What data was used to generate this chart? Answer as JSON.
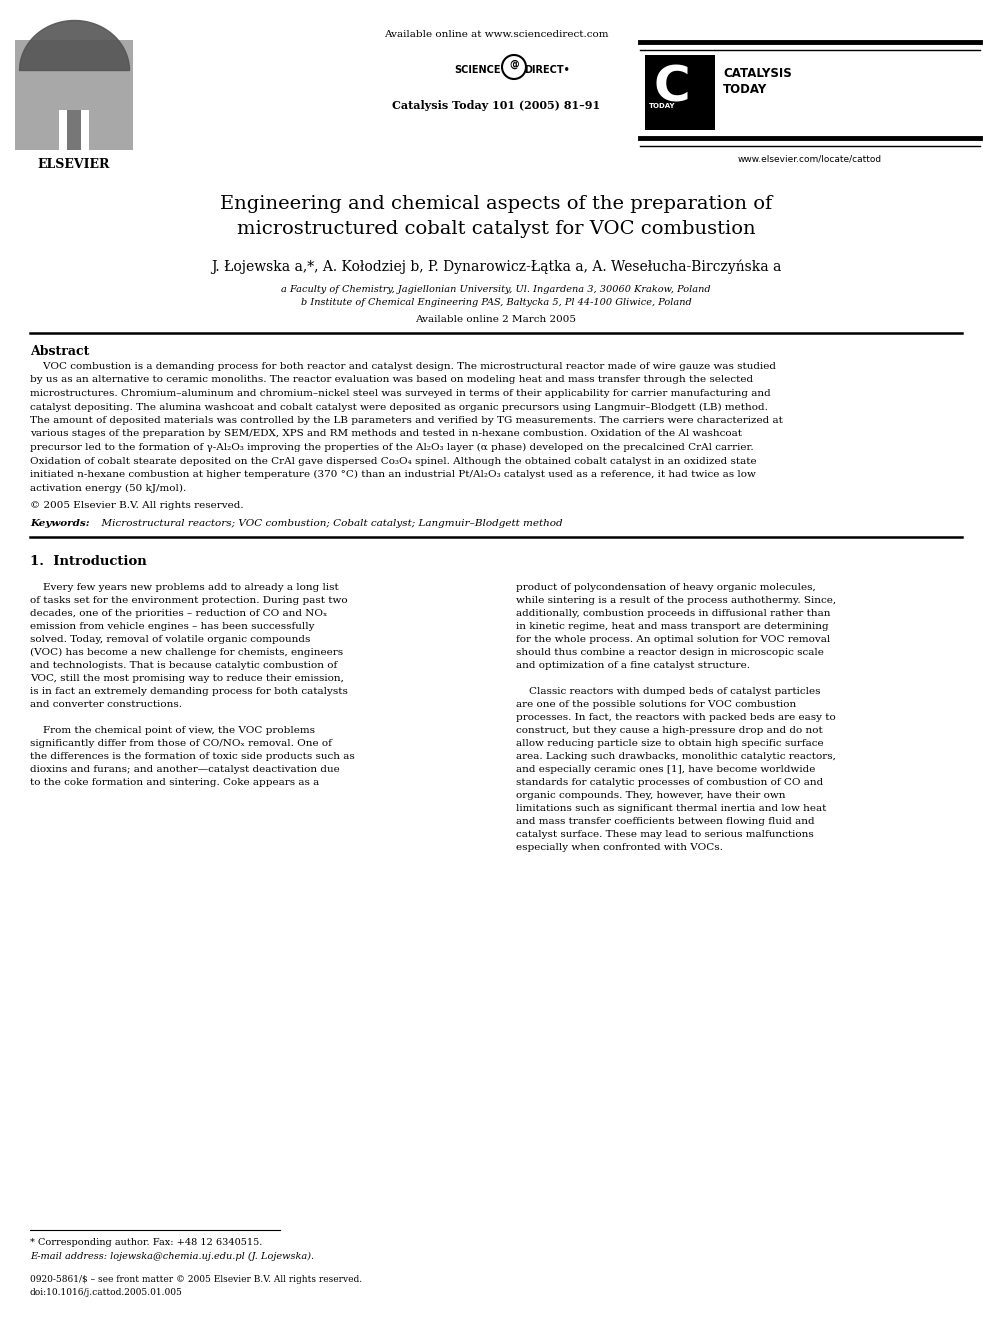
{
  "bg_color": "#ffffff",
  "page_width": 9.92,
  "page_height": 13.23,
  "dpi": 100,
  "header_available_online": "Available online at www.sciencedirect.com",
  "header_journal_line": "Catalysis Today 101 (2005) 81–91",
  "header_website": "www.elsevier.com/locate/cattod",
  "catalysis_text1": "CATALYSIS",
  "catalysis_text2": "TODAY",
  "title_line1": "Engineering and chemical aspects of the preparation of",
  "title_line2": "microstructured cobalt catalyst for VOC combustion",
  "authors_line": "J. Łojewska a,*, A. Kołodziej b, P. Dynarowicz-Łątka a, A. Wesełucha-Birczyńska a",
  "affil_a": "a Faculty of Chemistry, Jagiellonian University, Ul. Ingardena 3, 30060 Krakow, Poland",
  "affil_b": "b Institute of Chemical Engineering PAS, Bałtycka 5, Pl 44-100 Gliwice, Poland",
  "available_online_date": "Available online 2 March 2005",
  "abstract_label": "Abstract",
  "copyright": "© 2005 Elsevier B.V. All rights reserved.",
  "keywords_label": "Keywords:",
  "keywords_text": "Microstructural reactors; VOC combustion; Cobalt catalyst; Langmuir–Blodgett method",
  "section1_label": "1.  Introduction",
  "footnote_star": "* Corresponding author. Fax: +48 12 6340515.",
  "footnote_email": "E-mail address: lojewska@chemia.uj.edu.pl (J. Lojewska).",
  "footer_issn": "0920-5861/$ – see front matter © 2005 Elsevier B.V. All rights reserved.",
  "footer_doi": "doi:10.1016/j.cattod.2005.01.005",
  "abstract_lines": [
    "    VOC combustion is a demanding process for both reactor and catalyst design. The microstructural reactor made of wire gauze was studied",
    "by us as an alternative to ceramic monoliths. The reactor evaluation was based on modeling heat and mass transfer through the selected",
    "microstructures. Chromium–aluminum and chromium–nickel steel was surveyed in terms of their applicability for carrier manufacturing and",
    "catalyst depositing. The alumina washcoat and cobalt catalyst were deposited as organic precursors using Langmuir–Blodgett (LB) method.",
    "The amount of deposited materials was controlled by the LB parameters and verified by TG measurements. The carriers were characterized at",
    "various stages of the preparation by SEM/EDX, XPS and RM methods and tested in n-hexane combustion. Oxidation of the Al washcoat",
    "precursor led to the formation of γ-Al₂O₃ improving the properties of the Al₂O₃ layer (α phase) developed on the precalcined CrAl carrier.",
    "Oxidation of cobalt stearate deposited on the CrAl gave dispersed Co₃O₄ spinel. Although the obtained cobalt catalyst in an oxidized state",
    "initiated n-hexane combustion at higher temperature (370 °C) than an industrial Pt/Al₂O₃ catalyst used as a reference, it had twice as low",
    "activation energy (50 kJ/mol)."
  ],
  "col1_lines": [
    "    Every few years new problems add to already a long list",
    "of tasks set for the environment protection. During past two",
    "decades, one of the priorities – reduction of CO and NOₓ",
    "emission from vehicle engines – has been successfully",
    "solved. Today, removal of volatile organic compounds",
    "(VOC) has become a new challenge for chemists, engineers",
    "and technologists. That is because catalytic combustion of",
    "VOC, still the most promising way to reduce their emission,",
    "is in fact an extremely demanding process for both catalysts",
    "and converter constructions.",
    "",
    "    From the chemical point of view, the VOC problems",
    "significantly differ from those of CO/NOₓ removal. One of",
    "the differences is the formation of toxic side products such as",
    "dioxins and furans; and another—catalyst deactivation due",
    "to the coke formation and sintering. Coke appears as a"
  ],
  "col2_lines": [
    "product of polycondensation of heavy organic molecules,",
    "while sintering is a result of the process authothermy. Since,",
    "additionally, combustion proceeds in diffusional rather than",
    "in kinetic regime, heat and mass transport are determining",
    "for the whole process. An optimal solution for VOC removal",
    "should thus combine a reactor design in microscopic scale",
    "and optimization of a fine catalyst structure.",
    "",
    "    Classic reactors with dumped beds of catalyst particles",
    "are one of the possible solutions for VOC combustion",
    "processes. In fact, the reactors with packed beds are easy to",
    "construct, but they cause a high-pressure drop and do not",
    "allow reducing particle size to obtain high specific surface",
    "area. Lacking such drawbacks, monolithic catalytic reactors,",
    "and especially ceramic ones [1], have become worldwide",
    "standards for catalytic processes of combustion of CO and",
    "organic compounds. They, however, have their own",
    "limitations such as significant thermal inertia and low heat",
    "and mass transfer coefficients between flowing fluid and",
    "catalyst surface. These may lead to serious malfunctions",
    "especially when confronted with VOCs."
  ]
}
